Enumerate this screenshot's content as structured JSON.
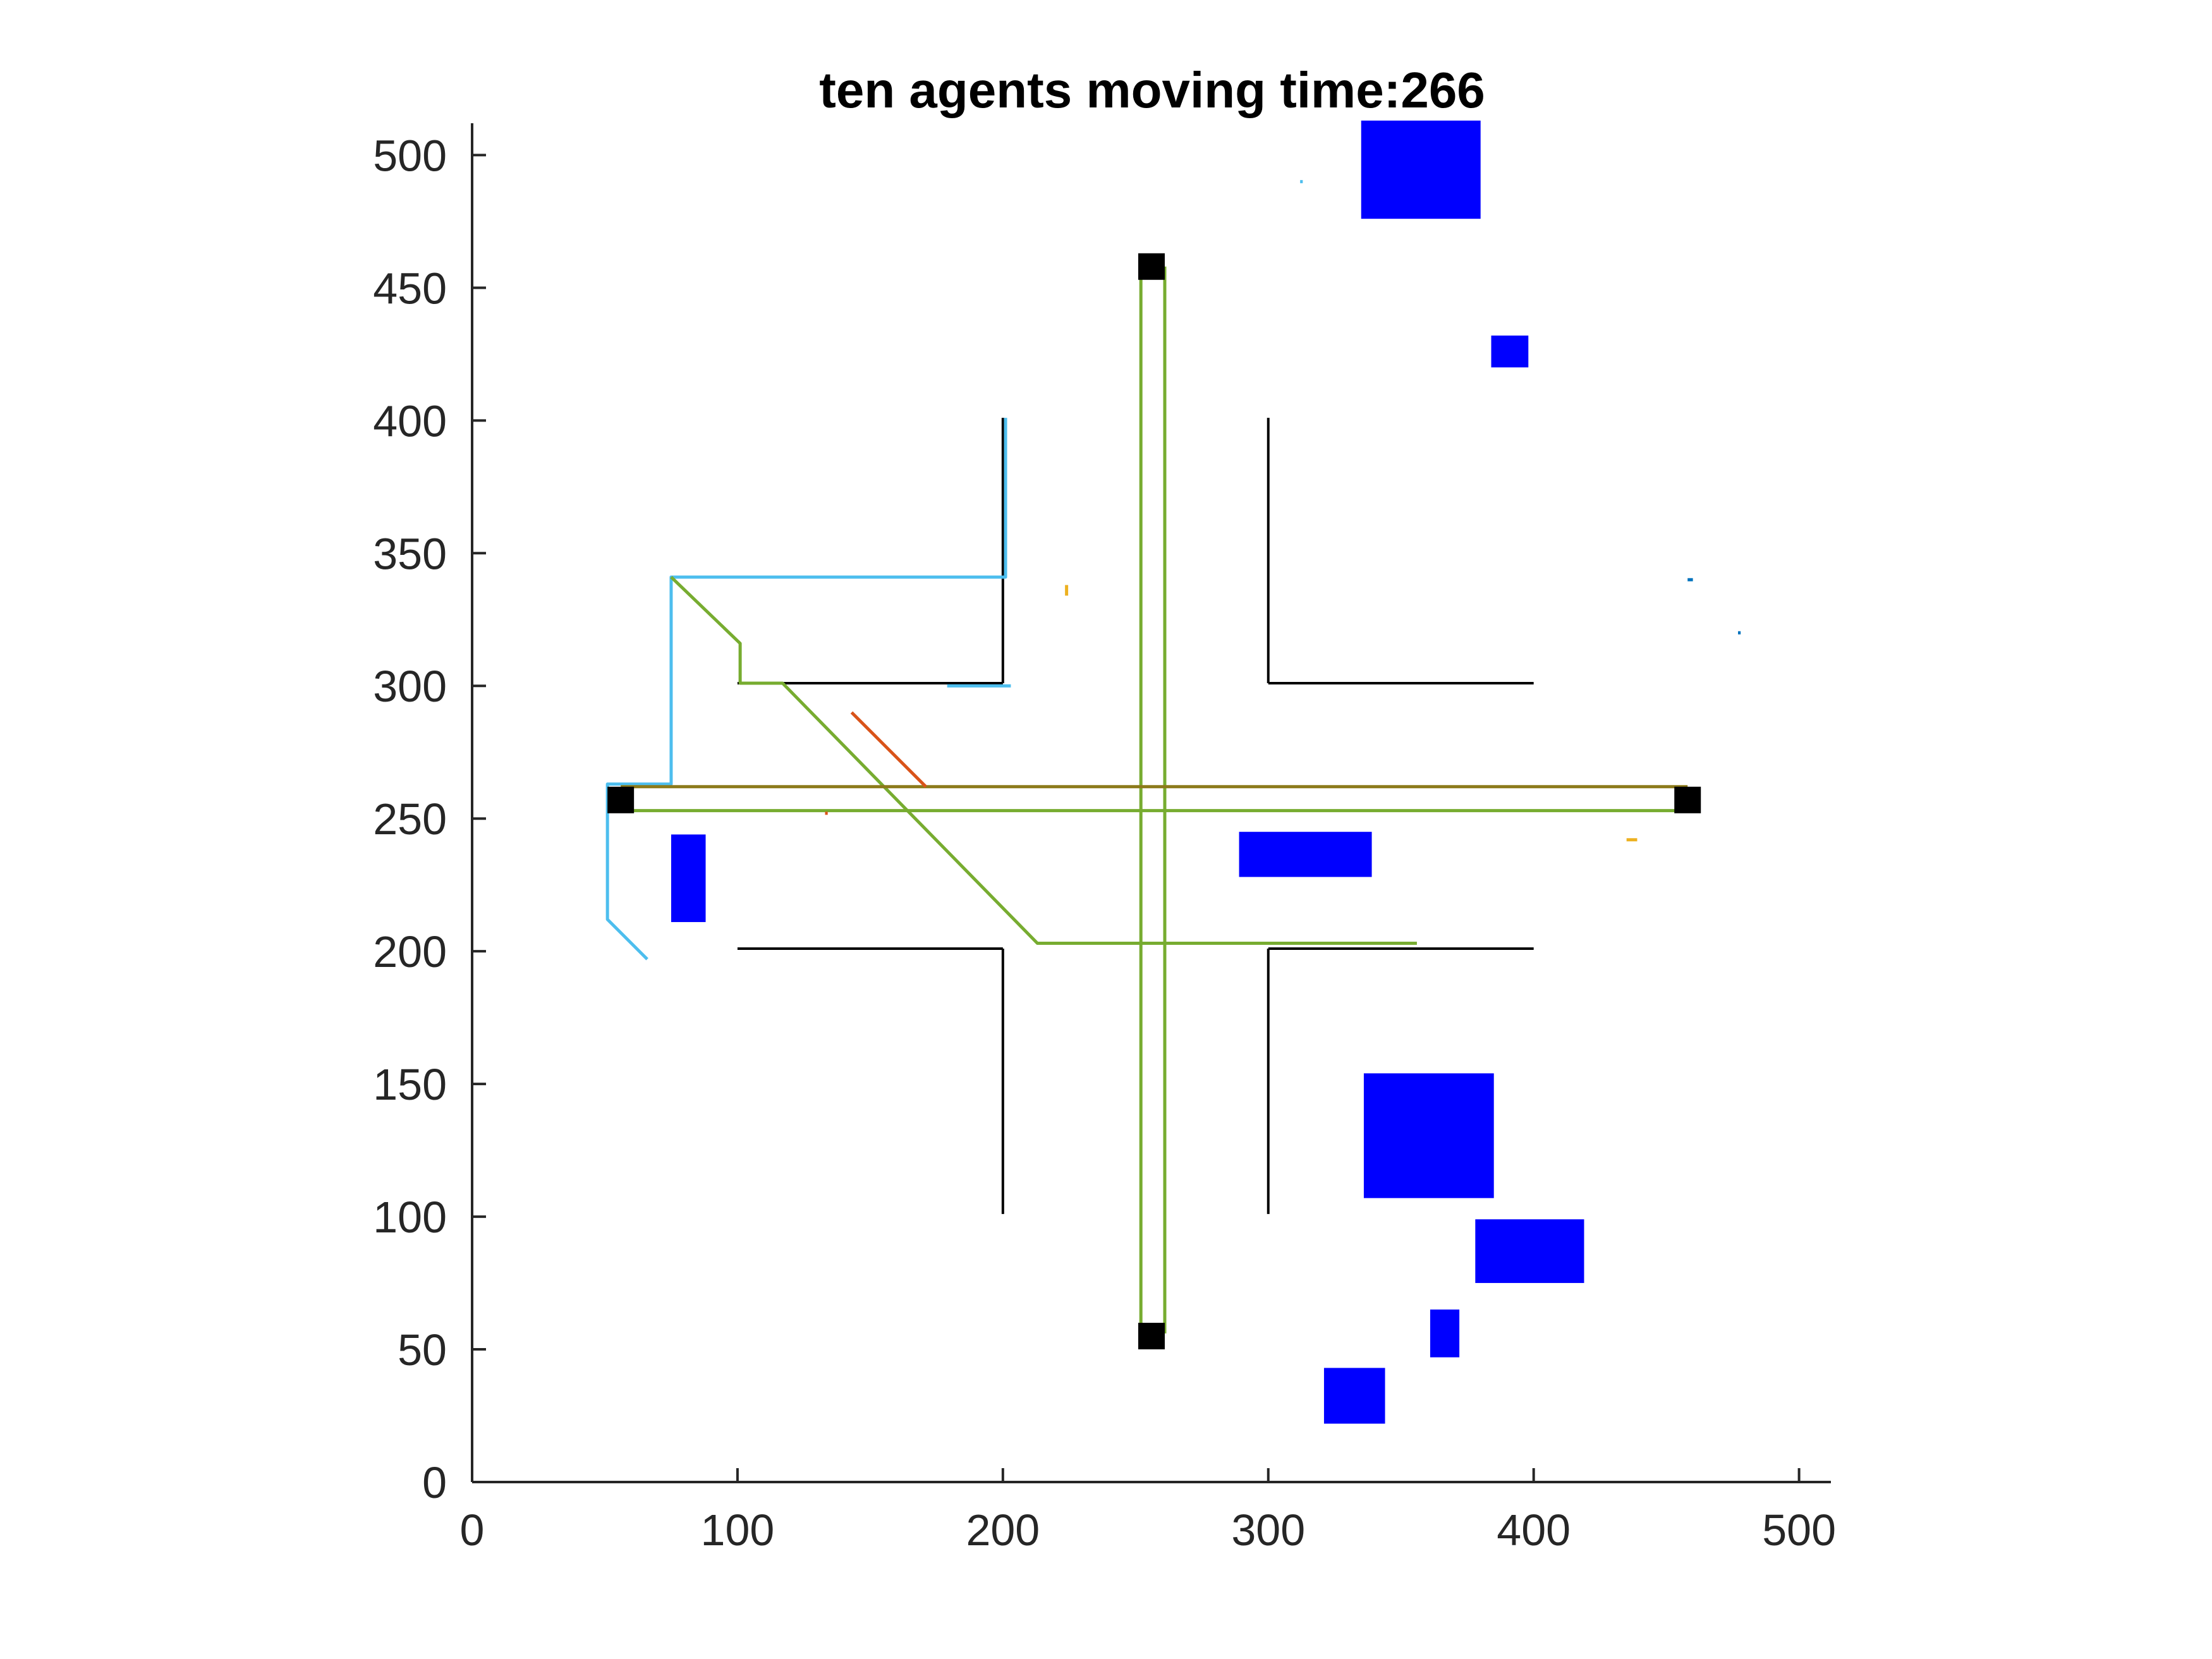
{
  "chart_data": {
    "type": "scatter",
    "title": "ten agents moving time:266",
    "xlabel": "",
    "ylabel": "",
    "xlim": [
      0,
      512
    ],
    "ylim": [
      0,
      512
    ],
    "xticks": [
      0,
      100,
      200,
      300,
      400,
      500
    ],
    "yticks": [
      0,
      50,
      100,
      150,
      200,
      250,
      300,
      350,
      400,
      450,
      500
    ],
    "grid": false,
    "legend": "none",
    "walls": {
      "color": "#000000",
      "segments": [
        [
          [
            100,
            301
          ],
          [
            200,
            301
          ]
        ],
        [
          [
            200,
            301
          ],
          [
            200,
            401
          ]
        ],
        [
          [
            300,
            301
          ],
          [
            400,
            301
          ]
        ],
        [
          [
            300,
            301
          ],
          [
            300,
            401
          ]
        ],
        [
          [
            100,
            201
          ],
          [
            200,
            201
          ]
        ],
        [
          [
            200,
            201
          ],
          [
            200,
            101
          ]
        ],
        [
          [
            300,
            201
          ],
          [
            400,
            201
          ]
        ],
        [
          [
            300,
            201
          ],
          [
            300,
            101
          ]
        ]
      ]
    },
    "obstacles": {
      "color": "#0000ff",
      "rects": [
        [
          335,
          476,
          380,
          513
        ],
        [
          384,
          420,
          398,
          432
        ],
        [
          75,
          211,
          88,
          244
        ],
        [
          289,
          228,
          339,
          245
        ],
        [
          336,
          107,
          385,
          154
        ],
        [
          378,
          75,
          419,
          99
        ],
        [
          361,
          47,
          372,
          65
        ],
        [
          321,
          22,
          344,
          43
        ]
      ]
    },
    "markers": {
      "color": "#000000",
      "points": [
        [
          256,
          55
        ],
        [
          256,
          458
        ],
        [
          56,
          257
        ],
        [
          458,
          257
        ]
      ]
    },
    "series": [
      {
        "color": "#4dbeee",
        "points": [
          [
            201,
            401
          ],
          [
            201,
            341
          ],
          [
            75,
            341
          ],
          [
            75,
            263
          ],
          [
            51,
            263
          ],
          [
            51,
            212
          ],
          [
            66,
            197
          ]
        ]
      },
      {
        "color": "#4dbeee",
        "points": [
          [
            179,
            300
          ],
          [
            203,
            300
          ]
        ]
      },
      {
        "color": "#77ac30",
        "points": [
          [
            75,
            341
          ],
          [
            101,
            316
          ],
          [
            101,
            301
          ],
          [
            117,
            301
          ],
          [
            213,
            203
          ],
          [
            356,
            203
          ]
        ]
      },
      {
        "color": "#77ac30",
        "points": [
          [
            252,
            56
          ],
          [
            252,
            458
          ]
        ]
      },
      {
        "color": "#77ac30",
        "points": [
          [
            261,
            56
          ],
          [
            261,
            458
          ]
        ]
      },
      {
        "color": "#77ac30",
        "points": [
          [
            56,
            253
          ],
          [
            458,
            253
          ]
        ]
      },
      {
        "color": "#8c7a1a",
        "points": [
          [
            56,
            262
          ],
          [
            458,
            262
          ]
        ]
      },
      {
        "color": "#d95319",
        "points": [
          [
            143,
            290
          ],
          [
            171,
            262
          ]
        ]
      },
      {
        "color": "#edb120",
        "points": [
          [
            224,
            334
          ],
          [
            224,
            338
          ]
        ]
      },
      {
        "color": "#edb120",
        "points": [
          [
            435,
            242
          ],
          [
            439,
            242
          ]
        ]
      },
      {
        "color": "#d95319",
        "points": [
          [
            133,
            252
          ],
          [
            134,
            252
          ]
        ]
      },
      {
        "color": "#0072bd",
        "points": [
          [
            458,
            340
          ],
          [
            460,
            340
          ]
        ]
      },
      {
        "color": "#0072bd",
        "points": [
          [
            477,
            320
          ],
          [
            478,
            320
          ]
        ]
      },
      {
        "color": "#4dbeee",
        "points": [
          [
            312,
            490
          ],
          [
            313,
            490
          ]
        ]
      }
    ]
  }
}
